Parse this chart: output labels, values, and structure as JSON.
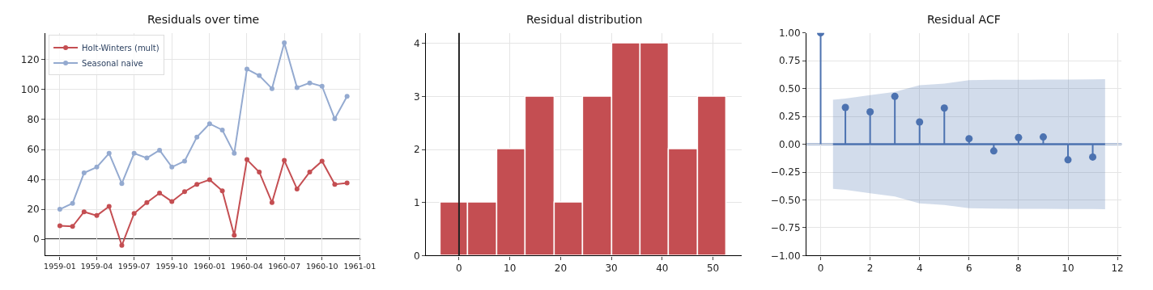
{
  "chart_data": [
    {
      "type": "line",
      "title": "Residuals over time",
      "x": [
        "1959-01",
        "1959-02",
        "1959-03",
        "1959-04",
        "1959-05",
        "1959-06",
        "1959-07",
        "1959-08",
        "1959-09",
        "1959-10",
        "1959-11",
        "1959-12",
        "1960-01",
        "1960-02",
        "1960-03",
        "1960-04",
        "1960-05",
        "1960-06",
        "1960-07",
        "1960-08",
        "1960-09",
        "1960-10",
        "1960-11",
        "1960-12"
      ],
      "series": [
        {
          "name": "Holt-Winters (mult)",
          "color": "#c44e52",
          "values": [
            9.0,
            8.5,
            18.3,
            15.8,
            21.9,
            -4.2,
            17.2,
            24.5,
            30.9,
            25.2,
            31.8,
            36.7,
            39.8,
            32.3,
            2.6,
            53.2,
            44.9,
            24.5,
            52.7,
            33.6,
            44.9,
            52.2,
            36.7,
            37.6
          ]
        },
        {
          "name": "Seasonal naive",
          "color": "#94aad0",
          "values": [
            20.0,
            24.0,
            44.3,
            48.2,
            57.4,
            37.2,
            57.4,
            54.3,
            59.5,
            48.2,
            52.2,
            68.3,
            77.2,
            73.0,
            57.4,
            113.7,
            109.4,
            100.7,
            131.3,
            101.4,
            104.5,
            102.3,
            80.5,
            95.5
          ]
        }
      ],
      "xlim": [
        "1958-11-27",
        "1961-01-03"
      ],
      "xticks": [
        {
          "value": "1959-01",
          "label": "1959-01"
        },
        {
          "value": "1959-04",
          "label": "1959-04"
        },
        {
          "value": "1959-07",
          "label": "1959-07"
        },
        {
          "value": "1959-10",
          "label": "1959-10"
        },
        {
          "value": "1960-01",
          "label": "1960-01"
        },
        {
          "value": "1960-04",
          "label": "1960-04"
        },
        {
          "value": "1960-07",
          "label": "1960-07"
        },
        {
          "value": "1960-10",
          "label": "1960-10"
        },
        {
          "value": "1961-01",
          "label": "1961-01"
        }
      ],
      "ylim": [
        -11,
        138
      ],
      "yticks": [
        0,
        20,
        40,
        60,
        80,
        100,
        120
      ],
      "ref_lines": [
        {
          "axis": "y",
          "value": 0,
          "color": "#333333"
        }
      ],
      "grid": true,
      "legend": "top left",
      "marker": "circle",
      "line_style": "solid"
    },
    {
      "type": "histogram",
      "title": "Residual distribution",
      "bins": [
        -3.6,
        1.83,
        7.49,
        13.1,
        18.85,
        24.5,
        30.16,
        35.8,
        41.4,
        47.0,
        52.7
      ],
      "values": [
        1,
        1,
        2,
        3,
        1,
        3,
        4,
        4,
        2,
        3
      ],
      "color": "#c44e52",
      "xlim": [
        -6.5,
        55.7
      ],
      "xticks": [
        0,
        10,
        20,
        30,
        40,
        50
      ],
      "ylim": [
        0,
        4.2
      ],
      "yticks": [
        0,
        1,
        2,
        3,
        4
      ],
      "ref_lines": [
        {
          "axis": "x",
          "value": 0,
          "color": "#222222"
        }
      ],
      "grid": true
    },
    {
      "type": "lollipop",
      "title": "Residual ACF",
      "series": [
        {
          "type": "line",
          "color": "#4c72b0",
          "marker": "none",
          "x": [
            0.5,
            1,
            2,
            3,
            4,
            5,
            6,
            7,
            8,
            9,
            10,
            11,
            11.5
          ],
          "values": [
            0,
            0,
            0,
            0,
            0,
            0,
            0,
            0,
            0,
            0,
            0,
            0,
            0
          ],
          "lower": [
            -0.4,
            -0.41,
            -0.44,
            -0.47,
            -0.53,
            -0.545,
            -0.575,
            -0.578,
            -0.579,
            -0.58,
            -0.581,
            -0.582,
            -0.584
          ],
          "upper": [
            0.4,
            0.41,
            0.44,
            0.47,
            0.53,
            0.545,
            0.575,
            0.578,
            0.579,
            0.58,
            0.581,
            0.582,
            0.584
          ]
        },
        {
          "type": "lollipop",
          "color": "#4c72b0",
          "marker": "circle",
          "x": [
            0,
            1,
            2,
            3,
            4,
            5,
            6,
            7,
            8,
            9,
            10,
            11
          ],
          "values": [
            1.0,
            0.33,
            0.29,
            0.43,
            0.2,
            0.325,
            0.05,
            -0.06,
            0.06,
            0.065,
            -0.14,
            -0.115
          ]
        }
      ],
      "xlim": [
        -0.57,
        12.17
      ],
      "xticks": [
        0,
        2,
        4,
        6,
        8,
        10,
        12
      ],
      "ylim": [
        -1,
        1
      ],
      "yticks": [
        {
          "value": -1,
          "label": "−1.00"
        },
        {
          "value": -0.75,
          "label": "−0.75"
        },
        {
          "value": -0.5,
          "label": "−0.50"
        },
        {
          "value": -0.25,
          "label": "−0.25"
        },
        {
          "value": 0,
          "label": "0.00"
        },
        {
          "value": 0.25,
          "label": "0.25"
        },
        {
          "value": 0.5,
          "label": "0.50"
        },
        {
          "value": 0.75,
          "label": "0.75"
        },
        {
          "value": 1,
          "label": "1.00"
        }
      ],
      "ref_lines": [
        {
          "axis": "y",
          "value": 0,
          "color": "#4c72b0"
        }
      ],
      "grid": true
    }
  ]
}
